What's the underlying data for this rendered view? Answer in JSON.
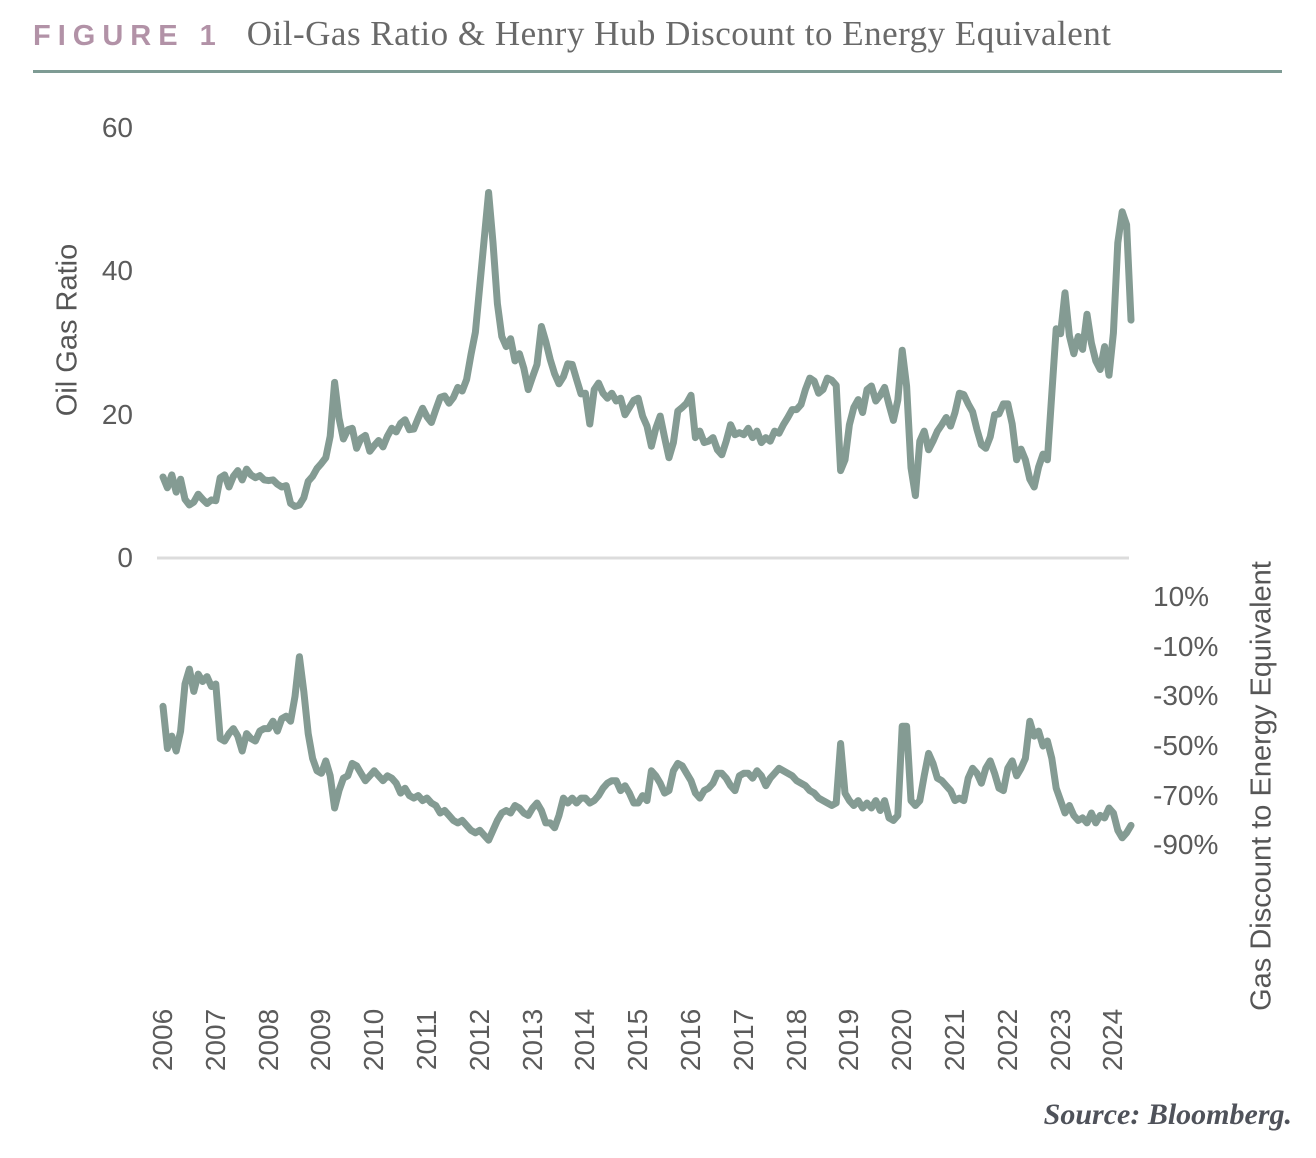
{
  "header": {
    "figure_label": "FIGURE 1",
    "title": "Oil-Gas Ratio & Henry Hub Discount to Energy Equivalent"
  },
  "source_note": "Source: Bloomberg.",
  "colors": {
    "line": "#849B93",
    "figure_label": "#B292A7",
    "divider": "#7E9B94",
    "gridline": "#DCDCDC",
    "tick_text": "#5B5B5B"
  },
  "yaxis_left": {
    "title": "Oil Gas Ratio",
    "tick_labels": [
      "60",
      "40",
      "20",
      "0"
    ],
    "tick_values": [
      60,
      40,
      20,
      0
    ]
  },
  "yaxis_right": {
    "title": "Gas Discount to Energy Equivalent",
    "tick_labels": [
      "10%",
      "-10%",
      "-30%",
      "-50%",
      "-70%",
      "-90%"
    ],
    "tick_values": [
      10,
      -10,
      -30,
      -50,
      -70,
      -90
    ]
  },
  "xaxis": {
    "tick_labels": [
      "2006",
      "2007",
      "2008",
      "2009",
      "2010",
      "2011",
      "2012",
      "2013",
      "2014",
      "2015",
      "2016",
      "2017",
      "2018",
      "2019",
      "2020",
      "2021",
      "2022",
      "2023",
      "2024"
    ],
    "tick_values": [
      2006,
      2007,
      2008,
      2009,
      2010,
      2011,
      2012,
      2013,
      2014,
      2015,
      2016,
      2017,
      2018,
      2019,
      2020,
      2021,
      2022,
      2023,
      2024
    ]
  },
  "chart_data": {
    "type": "line",
    "title": "Oil-Gas Ratio & Henry Hub Discount to Energy Equivalent",
    "x_range": [
      2006,
      2024.4
    ],
    "grid": "zero-line-only",
    "legend": "none",
    "series": [
      {
        "name": "Oil Gas Ratio",
        "axis": "top",
        "unit": "ratio",
        "ylim": [
          0,
          60
        ],
        "x_start": 2006.0,
        "x_step_years": 0.083333,
        "values": [
          11.3,
          9.8,
          11.6,
          9.2,
          11.0,
          8.2,
          7.4,
          7.8,
          8.9,
          8.2,
          7.6,
          8.1,
          8.0,
          11.2,
          11.6,
          9.9,
          11.4,
          12.2,
          10.9,
          12.4,
          11.6,
          11.2,
          11.5,
          10.9,
          10.8,
          10.9,
          10.3,
          9.9,
          10.1,
          7.6,
          7.2,
          7.4,
          8.4,
          10.7,
          11.4,
          12.5,
          13.2,
          14.0,
          17.0,
          24.5,
          19.5,
          16.6,
          17.9,
          18.1,
          15.3,
          16.7,
          17.1,
          14.9,
          15.7,
          16.4,
          15.5,
          17.0,
          18.1,
          17.6,
          18.8,
          19.3,
          17.9,
          18.0,
          19.5,
          20.9,
          19.7,
          18.9,
          20.7,
          22.4,
          22.6,
          21.6,
          22.4,
          23.8,
          23.3,
          24.9,
          28.4,
          31.5,
          38.0,
          44.5,
          51.0,
          44.0,
          35.5,
          30.9,
          29.5,
          30.6,
          27.5,
          28.5,
          26.5,
          23.5,
          25.3,
          27.0,
          32.3,
          30.2,
          27.7,
          25.7,
          24.3,
          25.3,
          27.1,
          27.0,
          24.9,
          22.9,
          23.0,
          18.7,
          23.5,
          24.4,
          23.0,
          22.3,
          23.0,
          21.9,
          22.3,
          20.0,
          21.0,
          22.0,
          22.3,
          19.8,
          18.4,
          15.6,
          18.1,
          19.8,
          16.8,
          14.0,
          16.1,
          20.5,
          21.0,
          21.6,
          22.7,
          16.8,
          17.7,
          16.1,
          16.3,
          16.8,
          15.1,
          14.4,
          16.3,
          18.6,
          17.2,
          17.5,
          17.2,
          18.1,
          16.8,
          17.7,
          16.1,
          16.8,
          16.3,
          17.7,
          17.4,
          18.6,
          19.6,
          20.7,
          20.7,
          21.4,
          23.5,
          25.1,
          24.7,
          23.0,
          23.5,
          25.1,
          24.8,
          24.1,
          12.2,
          13.7,
          18.6,
          21.0,
          22.1,
          20.3,
          23.5,
          24.0,
          21.9,
          22.7,
          23.8,
          21.4,
          19.2,
          22.0,
          29.0,
          24.0,
          12.6,
          8.7,
          16.3,
          17.7,
          15.1,
          16.3,
          17.7,
          18.6,
          19.6,
          18.4,
          20.3,
          23.0,
          22.8,
          21.5,
          20.4,
          17.9,
          15.8,
          15.3,
          16.9,
          20.0,
          20.1,
          21.5,
          21.5,
          18.7,
          13.7,
          15.2,
          13.7,
          11.0,
          9.9,
          12.7,
          14.5,
          13.7,
          22.9,
          32.0,
          31.3,
          37.0,
          31.0,
          28.5,
          30.9,
          29.1,
          34.0,
          30.0,
          27.5,
          26.3,
          29.5,
          25.5,
          31.4,
          44.0,
          48.3,
          46.5,
          33.2
        ]
      },
      {
        "name": "Gas Discount to Energy Equivalent",
        "axis": "bottom",
        "unit": "percent",
        "ylim": [
          10,
          -90
        ],
        "x_start": 2006.0,
        "x_step_years": 0.083333,
        "values": [
          -34,
          -51,
          -46,
          -52,
          -44,
          -25,
          -19,
          -28,
          -21,
          -24,
          -22,
          -26,
          -25,
          -47,
          -48,
          -45,
          -43,
          -46,
          -52,
          -45,
          -47,
          -48,
          -44,
          -43,
          -43,
          -40,
          -44,
          -39,
          -38,
          -40,
          -30,
          -14,
          -28,
          -45,
          -55,
          -60,
          -61,
          -56,
          -62,
          -75,
          -68,
          -63,
          -62,
          -57,
          -58,
          -61,
          -64,
          -62,
          -60,
          -62,
          -64,
          -62,
          -63,
          -65,
          -69,
          -67,
          -70,
          -71,
          -70,
          -72,
          -71,
          -73,
          -74,
          -77,
          -76,
          -78,
          -80,
          -81,
          -80,
          -82,
          -84,
          -85,
          -84,
          -86,
          -88,
          -84,
          -80,
          -77,
          -76,
          -77,
          -74,
          -75,
          -77,
          -78,
          -75,
          -73,
          -76,
          -81,
          -81,
          -83,
          -78,
          -71,
          -73,
          -71,
          -73,
          -71,
          -71,
          -73,
          -72,
          -70,
          -67,
          -65,
          -64,
          -64,
          -68,
          -66,
          -69,
          -73,
          -73,
          -70,
          -72,
          -60,
          -62,
          -65,
          -69,
          -68,
          -60,
          -57,
          -58,
          -61,
          -64,
          -69,
          -71,
          -68,
          -67,
          -65,
          -61,
          -61,
          -63,
          -66,
          -68,
          -62,
          -61,
          -61,
          -63,
          -60,
          -62,
          -66,
          -63,
          -61,
          -59,
          -60,
          -61,
          -62,
          -64,
          -65,
          -66,
          -68,
          -69,
          -71,
          -72,
          -73,
          -74,
          -73,
          -49,
          -69,
          -72,
          -74,
          -72,
          -75,
          -73,
          -75,
          -72,
          -76,
          -72,
          -79,
          -80,
          -78,
          -42,
          -42,
          -72,
          -74,
          -72,
          -62,
          -53,
          -57,
          -63,
          -64,
          -66,
          -68,
          -72,
          -71,
          -72,
          -63,
          -59,
          -61,
          -65,
          -59,
          -56,
          -61,
          -67,
          -68,
          -59,
          -56,
          -62,
          -59,
          -55,
          -40,
          -46,
          -44,
          -50,
          -48,
          -55,
          -67,
          -72,
          -77,
          -74,
          -78,
          -80,
          -79,
          -81,
          -77,
          -81,
          -78,
          -79,
          -75,
          -77,
          -84,
          -87,
          -85,
          -82
        ]
      }
    ]
  }
}
